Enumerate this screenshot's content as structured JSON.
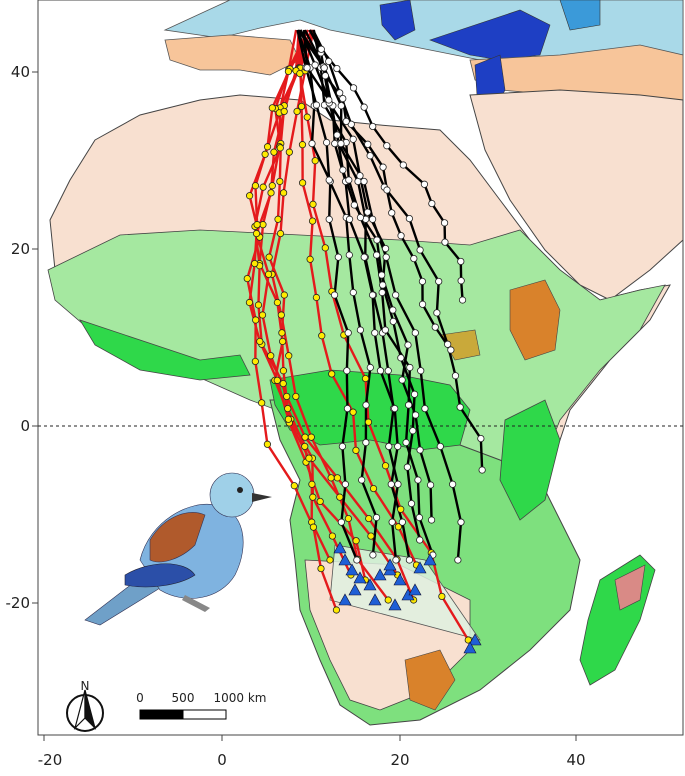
{
  "map": {
    "axes": {
      "x_ticks": [
        "-20",
        "0",
        "20",
        "40"
      ],
      "y_ticks": [
        "40",
        "20",
        "0",
        "-20"
      ]
    },
    "equator_line": true,
    "scale_bar": {
      "labels": [
        "0",
        "500",
        "1000 km"
      ]
    },
    "north_arrow": {
      "label": "N"
    },
    "route_colors": {
      "autumn_route": "#e41a1c",
      "autumn_stopover": "#ffea00",
      "spring_route": "#000000",
      "spring_stopover": "#ffffff",
      "wintering_site": "#1f5fd6"
    },
    "land_cover_colors": {
      "desert": "#f8e0d0",
      "sahel_grassland": "#c8f0b8",
      "savanna": "#7ee07e",
      "forest": "#2fd84a",
      "mediterranean": "#f7c59a",
      "temperate": "#a9d9e8",
      "boreal": "#1e3fc4",
      "mountain": "#d9822b",
      "wetland": "#c9a93a",
      "wintering_area_polygon": "#dff0e0"
    },
    "illustration": "european-roller-bird"
  }
}
